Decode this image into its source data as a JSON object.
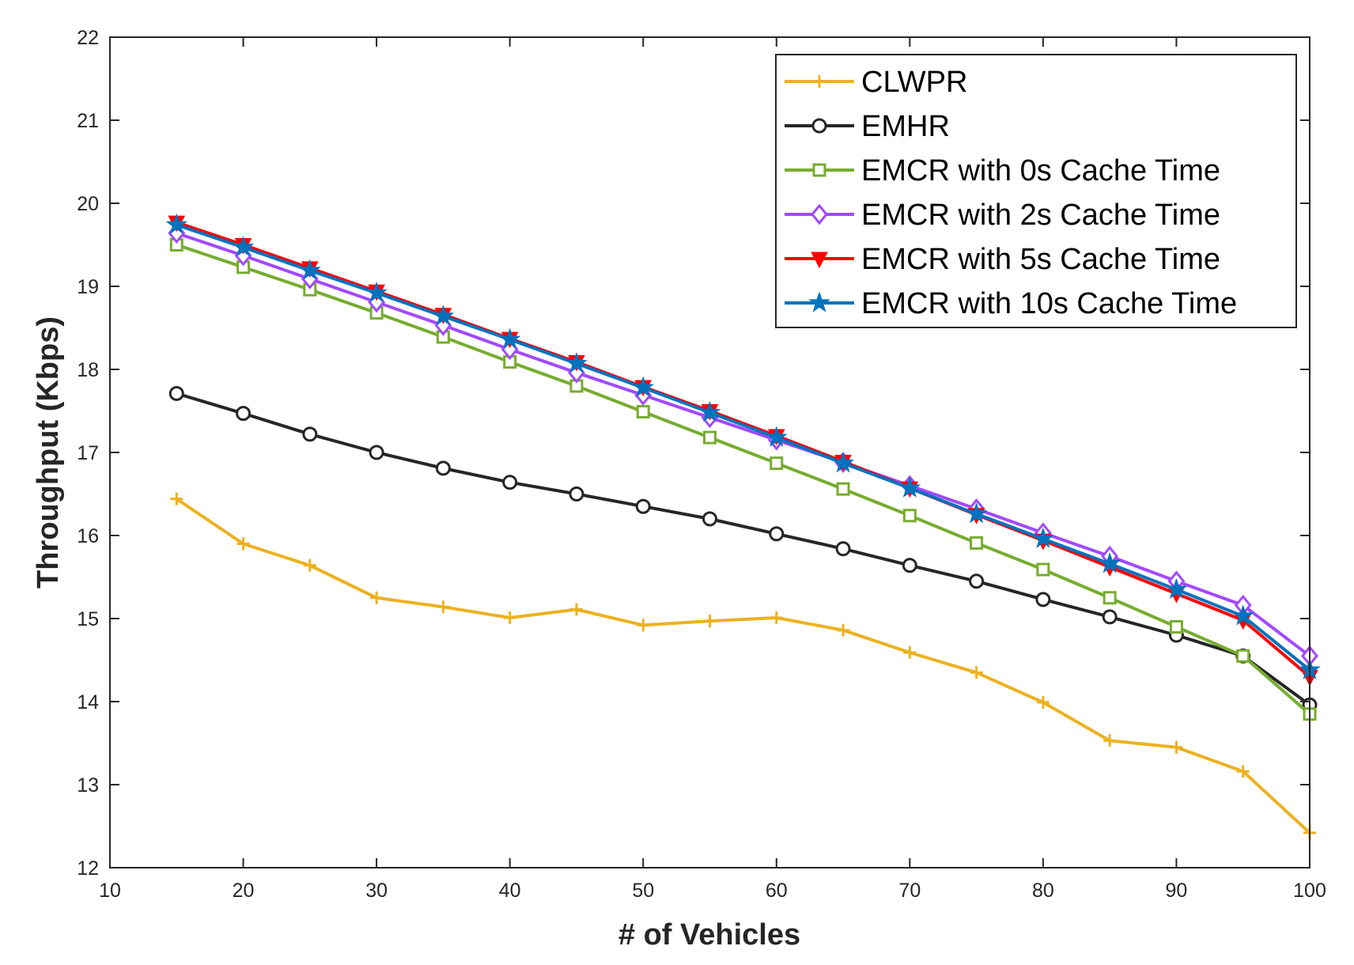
{
  "chart_data": {
    "type": "line",
    "title": "",
    "xlabel": "# of Vehicles",
    "ylabel": "Throughput (Kbps)",
    "xlim": [
      10,
      100
    ],
    "ylim": [
      12,
      22
    ],
    "x_ticks": [
      10,
      20,
      30,
      40,
      50,
      60,
      70,
      80,
      90,
      100
    ],
    "y_ticks": [
      12,
      13,
      14,
      15,
      16,
      17,
      18,
      19,
      20,
      21,
      22
    ],
    "grid": false,
    "legend_position": "top-right",
    "x": [
      15,
      20,
      25,
      30,
      35,
      40,
      45,
      50,
      55,
      60,
      65,
      70,
      75,
      80,
      85,
      90,
      95,
      100
    ],
    "series": [
      {
        "name": "CLWPR",
        "color": "#EDB120",
        "marker": "plus",
        "values": [
          16.44,
          15.9,
          15.64,
          15.25,
          15.14,
          15.01,
          15.11,
          14.92,
          14.97,
          15.01,
          14.86,
          14.59,
          14.35,
          13.99,
          13.53,
          13.45,
          13.16,
          12.42
        ]
      },
      {
        "name": "EMHR",
        "color": "#262626",
        "marker": "circle",
        "values": [
          17.71,
          17.47,
          17.22,
          17.0,
          16.81,
          16.64,
          16.5,
          16.35,
          16.2,
          16.02,
          15.84,
          15.64,
          15.45,
          15.23,
          15.02,
          14.8,
          14.55,
          13.96
        ]
      },
      {
        "name": "EMCR with 0s Cache Time",
        "color": "#77AC30",
        "marker": "square",
        "values": [
          19.5,
          19.23,
          18.96,
          18.68,
          18.39,
          18.09,
          17.8,
          17.49,
          17.18,
          16.87,
          16.56,
          16.24,
          15.91,
          15.59,
          15.25,
          14.9,
          14.55,
          13.85
        ]
      },
      {
        "name": "EMCR with 2s Cache Time",
        "color": "#A349FF",
        "marker": "diamond",
        "values": [
          19.64,
          19.37,
          19.09,
          18.81,
          18.53,
          18.24,
          17.96,
          17.69,
          17.42,
          17.15,
          16.88,
          16.6,
          16.32,
          16.03,
          15.75,
          15.45,
          15.16,
          14.55
        ]
      },
      {
        "name": "EMCR with 5s Cache Time",
        "color": "#FF0000",
        "marker": "triangle-down",
        "values": [
          19.77,
          19.5,
          19.22,
          18.94,
          18.66,
          18.37,
          18.09,
          17.79,
          17.5,
          17.2,
          16.89,
          16.57,
          16.25,
          15.94,
          15.62,
          15.3,
          14.98,
          14.3
        ]
      },
      {
        "name": "EMCR with 10s Cache Time",
        "color": "#0072BD",
        "marker": "star",
        "values": [
          19.74,
          19.47,
          19.19,
          18.92,
          18.64,
          18.36,
          18.07,
          17.78,
          17.48,
          17.18,
          16.87,
          16.57,
          16.26,
          15.96,
          15.66,
          15.35,
          15.03,
          14.38
        ]
      }
    ]
  }
}
